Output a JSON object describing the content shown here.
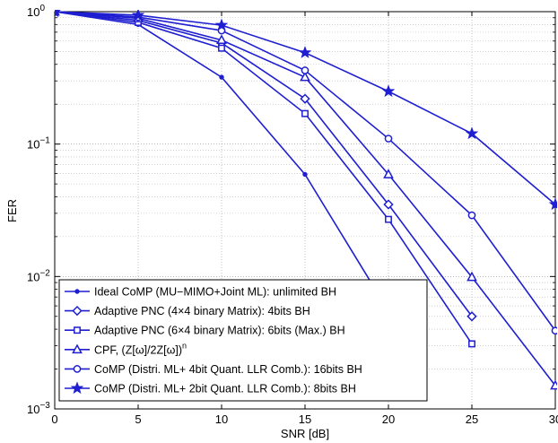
{
  "chart_data": {
    "type": "line",
    "xlabel": "SNR [dB]",
    "ylabel": "FER",
    "xlim": [
      0,
      30
    ],
    "ylim": [
      0.001,
      1
    ],
    "yscale": "log",
    "grid": true,
    "legend_position": "bottom-left",
    "color": "#1f1fd1",
    "x_ticks": [
      "0",
      "5",
      "10",
      "15",
      "20",
      "25",
      "30"
    ],
    "y_ticks": [
      {
        "base": "10",
        "exp": "0",
        "value": 1
      },
      {
        "base": "10",
        "exp": "−1",
        "value": 0.1
      },
      {
        "base": "10",
        "exp": "−2",
        "value": 0.01
      },
      {
        "base": "10",
        "exp": "−3",
        "value": 0.001
      }
    ],
    "series": [
      {
        "name": "Ideal CoMP (MU−MIMO+Joint ML): unlimited BH",
        "marker": "dot",
        "points": [
          [
            0,
            1.0
          ],
          [
            5,
            0.8
          ],
          [
            10,
            0.32
          ],
          [
            15,
            0.059
          ],
          [
            20,
            0.0055
          ]
        ]
      },
      {
        "name": "Adaptive PNC (4×4 binary Matrix): 4bits BH",
        "marker": "diamond",
        "points": [
          [
            0,
            1.0
          ],
          [
            5,
            0.86
          ],
          [
            10,
            0.58
          ],
          [
            15,
            0.22
          ],
          [
            20,
            0.035
          ],
          [
            25,
            0.005
          ]
        ]
      },
      {
        "name": "Adaptive PNC (6×4 binary Matrix): 6bits (Max.) BH",
        "marker": "square",
        "points": [
          [
            0,
            1.0
          ],
          [
            5,
            0.83
          ],
          [
            10,
            0.53
          ],
          [
            15,
            0.17
          ],
          [
            20,
            0.027
          ],
          [
            25,
            0.0031
          ]
        ]
      },
      {
        "name_parts": {
          "prefix": "CPF, (Z[ω]/2Z[ω])",
          "sup": "n"
        },
        "name": "CPF, (Z[ω]/2Z[ω])n",
        "marker": "triangle",
        "points": [
          [
            0,
            1.0
          ],
          [
            5,
            0.89
          ],
          [
            10,
            0.61
          ],
          [
            15,
            0.32
          ],
          [
            20,
            0.059
          ],
          [
            25,
            0.0099
          ],
          [
            30,
            0.0015
          ]
        ]
      },
      {
        "name": "CoMP (Distri. ML+ 4bit Quant. LLR Comb.): 16bits BH",
        "marker": "circle",
        "points": [
          [
            0,
            1.0
          ],
          [
            5,
            0.91
          ],
          [
            10,
            0.72
          ],
          [
            15,
            0.36
          ],
          [
            20,
            0.11
          ],
          [
            25,
            0.029
          ],
          [
            30,
            0.0039
          ]
        ]
      },
      {
        "name": "CoMP (Distri. ML+ 2bit Quant. LLR Comb.): 8bits BH",
        "marker": "star",
        "points": [
          [
            0,
            1.0
          ],
          [
            5,
            0.94
          ],
          [
            10,
            0.79
          ],
          [
            15,
            0.49
          ],
          [
            20,
            0.25
          ],
          [
            25,
            0.12
          ],
          [
            30,
            0.035
          ]
        ]
      }
    ]
  }
}
